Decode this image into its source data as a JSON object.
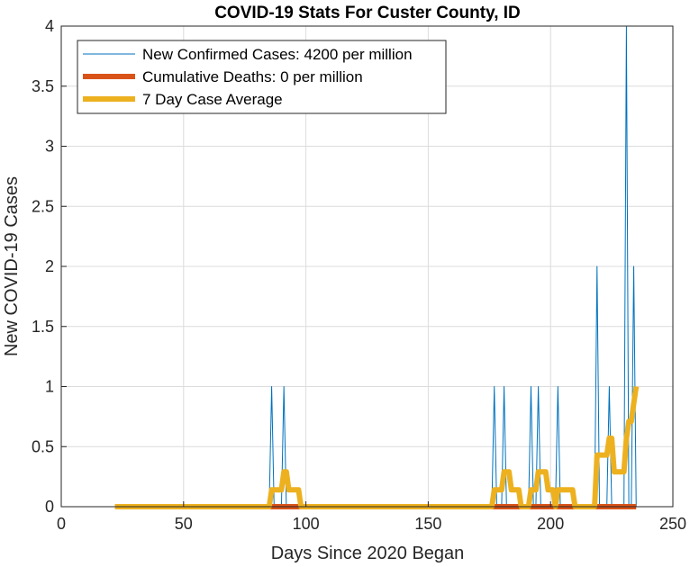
{
  "chart_data": {
    "type": "line",
    "title": "COVID-19 Stats For Custer County, ID",
    "xlabel": "Days Since 2020 Began",
    "ylabel": "New COVID-19 Cases",
    "xlim": [
      0,
      250
    ],
    "ylim": [
      0,
      4
    ],
    "xticks": [
      0,
      50,
      100,
      150,
      200,
      250
    ],
    "yticks": [
      0,
      0.5,
      1,
      1.5,
      2,
      2.5,
      3,
      3.5,
      4
    ],
    "xtick_labels": [
      "0",
      "50",
      "100",
      "150",
      "200",
      "250"
    ],
    "ytick_labels": [
      "0",
      "0.5",
      "1",
      "1.5",
      "2",
      "2.5",
      "3",
      "3.5",
      "4"
    ],
    "grid": true,
    "legend_position": "top-left",
    "series": [
      {
        "name": "New Confirmed Cases: 4200 per million",
        "color": "#0072BD",
        "points": [
          [
            22,
            0
          ],
          [
            85,
            0
          ],
          [
            86,
            1
          ],
          [
            87,
            0
          ],
          [
            90,
            0
          ],
          [
            91,
            1
          ],
          [
            92,
            0
          ],
          [
            176,
            0
          ],
          [
            177,
            1
          ],
          [
            178,
            0
          ],
          [
            180,
            0
          ],
          [
            181,
            1
          ],
          [
            182,
            0
          ],
          [
            191,
            0
          ],
          [
            192,
            1
          ],
          [
            193,
            0
          ],
          [
            194,
            0
          ],
          [
            195,
            1
          ],
          [
            196,
            0
          ],
          [
            202,
            0
          ],
          [
            203,
            1
          ],
          [
            204,
            0
          ],
          [
            218,
            0
          ],
          [
            219,
            2
          ],
          [
            220,
            0
          ],
          [
            223,
            0
          ],
          [
            224,
            1
          ],
          [
            225,
            0
          ],
          [
            230,
            0
          ],
          [
            231,
            4
          ],
          [
            232,
            0
          ],
          [
            233,
            0
          ],
          [
            234,
            2
          ],
          [
            235,
            0
          ]
        ]
      },
      {
        "name": "Cumulative Deaths: 0 per million",
        "color": "#D95319",
        "points": [
          [
            22,
            0
          ],
          [
            235,
            0
          ]
        ]
      },
      {
        "name": "7 Day Case Average",
        "color": "#EDB120",
        "points": [
          [
            22,
            0
          ],
          [
            85,
            0
          ],
          [
            86,
            0.14
          ],
          [
            90,
            0.14
          ],
          [
            91,
            0.29
          ],
          [
            92,
            0.29
          ],
          [
            93,
            0.14
          ],
          [
            97,
            0.14
          ],
          [
            98,
            0
          ],
          [
            176,
            0
          ],
          [
            177,
            0.14
          ],
          [
            180,
            0.14
          ],
          [
            181,
            0.29
          ],
          [
            183,
            0.29
          ],
          [
            184,
            0.14
          ],
          [
            187,
            0.14
          ],
          [
            188,
            0
          ],
          [
            191,
            0
          ],
          [
            192,
            0.14
          ],
          [
            194,
            0.14
          ],
          [
            195,
            0.29
          ],
          [
            198,
            0.29
          ],
          [
            199,
            0.14
          ],
          [
            201,
            0.14
          ],
          [
            202,
            0
          ],
          [
            203,
            0.14
          ],
          [
            209,
            0.14
          ],
          [
            210,
            0
          ],
          [
            218,
            0
          ],
          [
            219,
            0.43
          ],
          [
            222,
            0.43
          ],
          [
            223,
            0.43
          ],
          [
            224,
            0.57
          ],
          [
            225,
            0.57
          ],
          [
            226,
            0.29
          ],
          [
            229,
            0.29
          ],
          [
            230,
            0.29
          ],
          [
            231,
            0.57
          ],
          [
            232,
            0.71
          ],
          [
            233,
            0.71
          ],
          [
            234,
            0.86
          ],
          [
            235,
            1.0
          ]
        ]
      }
    ]
  }
}
